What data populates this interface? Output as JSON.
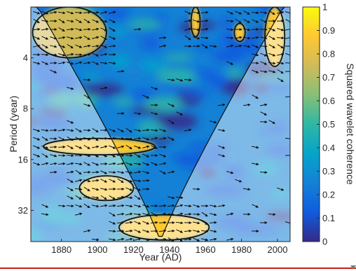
{
  "chart_data": {
    "type": "heatmap",
    "title": "",
    "xlabel": "Year (AD)",
    "ylabel": "Period (year)",
    "x_ticks": [
      1880,
      1900,
      1920,
      1940,
      1960,
      1980,
      2000
    ],
    "y_ticks": [
      4,
      8,
      16,
      32
    ],
    "xlim": [
      1863,
      2007
    ],
    "ylim_period_log2": [
      2,
      49
    ],
    "y_scale": "log2",
    "y_direction": "period increases downward",
    "colorbar": {
      "label": "Squared wavelet coherence",
      "ticks": [
        0,
        0.1,
        0.2,
        0.3,
        0.4,
        0.5,
        0.6,
        0.7,
        0.8,
        0.9,
        1
      ],
      "range": [
        0,
        1
      ],
      "colormap": "parula",
      "colors": [
        "#352a87",
        "#0f5cdd",
        "#1481d6",
        "#06a4ca",
        "#2eb7a4",
        "#87bf77",
        "#d1bb59",
        "#fec832",
        "#f9fb0e"
      ]
    },
    "significant_regions": [
      {
        "period_range": [
          12,
          15
        ],
        "year_range": [
          1870,
          1932
        ],
        "coherence": 0.85
      },
      {
        "period_range": [
          20,
          28
        ],
        "year_range": [
          1890,
          1920
        ],
        "coherence": 0.85
      },
      {
        "period_range": [
          34,
          48
        ],
        "year_range": [
          1912,
          1962
        ],
        "coherence": 0.9
      },
      {
        "period_range": [
          2,
          4
        ],
        "year_range": [
          1864,
          1905
        ],
        "coherence": 0.75
      },
      {
        "period_range": [
          2,
          3
        ],
        "year_range": [
          1952,
          1957
        ],
        "coherence": 0.85
      },
      {
        "period_range": [
          2.5,
          3.2
        ],
        "year_range": [
          1976,
          1982
        ],
        "coherence": 0.85
      },
      {
        "period_range": [
          2,
          4.5
        ],
        "year_range": [
          1993,
          2004
        ],
        "coherence": 0.85
      }
    ],
    "cone_of_influence": "shaded outside the U-shaped curve",
    "phase_arrows": true,
    "grid": false
  }
}
